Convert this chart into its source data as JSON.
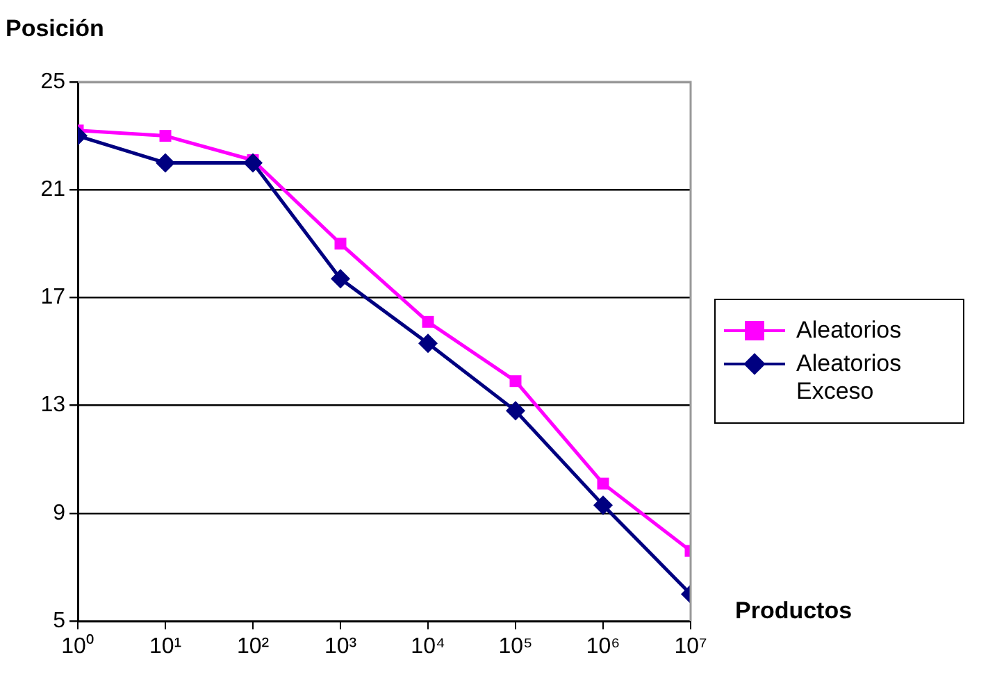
{
  "chart_data": {
    "type": "line",
    "ylabel": "Posición",
    "xlabel": "Productos",
    "x": [
      1,
      10,
      100,
      1000,
      10000,
      100000,
      1000000,
      10000000
    ],
    "log": "x",
    "xlim": [
      1,
      10000000
    ],
    "xticks": [
      {
        "value": 1,
        "label": "10⁰"
      },
      {
        "value": 10,
        "label": "10¹"
      },
      {
        "value": 100,
        "label": "10²"
      },
      {
        "value": 1000,
        "label": "10³"
      },
      {
        "value": 10000,
        "label": "10⁴"
      },
      {
        "value": 100000,
        "label": "10⁵"
      },
      {
        "value": 1000000,
        "label": "10⁶"
      },
      {
        "value": 10000000,
        "label": "10⁷"
      }
    ],
    "ylim": [
      5,
      25
    ],
    "yticks": [
      5,
      9,
      13,
      17,
      21,
      25
    ],
    "grid": "y",
    "legend": "right",
    "line_style": "solid",
    "series": [
      {
        "name": "Aleatorios",
        "color": "#ff00ff",
        "marker": "square",
        "values": [
          23.2,
          23.0,
          22.1,
          19.0,
          16.1,
          13.9,
          10.1,
          7.6
        ]
      },
      {
        "name": "Aleatorios Exceso",
        "color": "#000080",
        "marker": "diamond",
        "values": [
          23.0,
          22.0,
          22.0,
          17.7,
          15.3,
          12.8,
          9.3,
          6.0
        ]
      }
    ]
  }
}
